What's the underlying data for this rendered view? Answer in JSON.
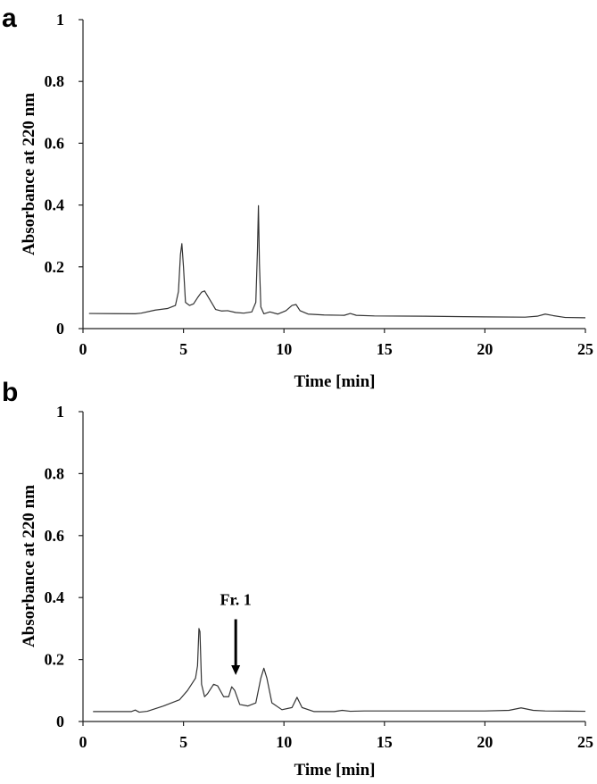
{
  "chart_data": [
    {
      "type": "line",
      "panel_label": "a",
      "title": "",
      "xlabel": "Time [min]",
      "ylabel": "Absorbance at 220 nm",
      "xlim": [
        0,
        25
      ],
      "ylim": [
        0,
        1
      ],
      "xticks": [
        0,
        5,
        10,
        15,
        20,
        25
      ],
      "yticks": [
        0,
        0.2,
        0.4,
        0.6,
        0.8,
        1
      ],
      "ytick_labels": [
        "0",
        "0.2",
        "0.4",
        "0.6",
        "0.8",
        "1"
      ],
      "grid": false,
      "line_color": "#333333",
      "series": [
        {
          "x": [
            0.3,
            2.6,
            2.9,
            3.6,
            4.2,
            4.6,
            4.75,
            4.85,
            4.92,
            5.0,
            5.1,
            5.3,
            5.5,
            5.7,
            5.9,
            6.05,
            6.3,
            6.6,
            6.9,
            7.2,
            7.6,
            8.0,
            8.4,
            8.6,
            8.68,
            8.73,
            8.78,
            8.85,
            9.0,
            9.3,
            9.7,
            10.1,
            10.4,
            10.6,
            10.8,
            11.2,
            12.0,
            13.0,
            13.3,
            13.6,
            14.5,
            17,
            20,
            22.0,
            22.6,
            23.0,
            23.4,
            24.0,
            25.0
          ],
          "y": [
            0.049,
            0.048,
            0.05,
            0.06,
            0.065,
            0.075,
            0.12,
            0.24,
            0.275,
            0.2,
            0.085,
            0.075,
            0.08,
            0.1,
            0.118,
            0.122,
            0.095,
            0.062,
            0.057,
            0.058,
            0.052,
            0.05,
            0.054,
            0.085,
            0.25,
            0.398,
            0.21,
            0.07,
            0.048,
            0.054,
            0.047,
            0.058,
            0.075,
            0.078,
            0.058,
            0.047,
            0.044,
            0.043,
            0.049,
            0.043,
            0.041,
            0.04,
            0.038,
            0.037,
            0.04,
            0.047,
            0.042,
            0.036,
            0.035
          ]
        }
      ]
    },
    {
      "type": "line",
      "panel_label": "b",
      "title": "",
      "xlabel": "Time [min]",
      "ylabel": "Absorbance at 220 nm",
      "xlim": [
        0,
        25
      ],
      "ylim": [
        0,
        1
      ],
      "xticks": [
        0,
        5,
        10,
        15,
        20,
        25
      ],
      "yticks": [
        0,
        0.2,
        0.4,
        0.6,
        0.8,
        1
      ],
      "ytick_labels": [
        "0",
        "0.2",
        "0.4",
        "0.6",
        "0.8",
        "1"
      ],
      "grid": false,
      "line_color": "#333333",
      "series": [
        {
          "x": [
            0.5,
            2.4,
            2.6,
            2.8,
            3.2,
            4.0,
            4.8,
            5.2,
            5.5,
            5.6,
            5.7,
            5.77,
            5.82,
            5.9,
            6.05,
            6.2,
            6.5,
            6.7,
            7.0,
            7.25,
            7.4,
            7.55,
            7.8,
            8.2,
            8.6,
            8.85,
            9.0,
            9.15,
            9.4,
            9.9,
            10.4,
            10.65,
            10.9,
            11.5,
            12.5,
            12.9,
            13.3,
            14,
            16,
            18,
            20,
            21.2,
            21.8,
            22.4,
            23.0,
            25.0
          ],
          "y": [
            0.032,
            0.032,
            0.037,
            0.03,
            0.033,
            0.05,
            0.07,
            0.1,
            0.13,
            0.14,
            0.18,
            0.3,
            0.29,
            0.12,
            0.08,
            0.09,
            0.12,
            0.115,
            0.08,
            0.08,
            0.112,
            0.1,
            0.055,
            0.05,
            0.06,
            0.14,
            0.172,
            0.14,
            0.06,
            0.038,
            0.045,
            0.078,
            0.045,
            0.032,
            0.032,
            0.036,
            0.033,
            0.034,
            0.034,
            0.034,
            0.034,
            0.036,
            0.044,
            0.036,
            0.034,
            0.033
          ]
        }
      ],
      "annotations": [
        {
          "text": "Fr. 1",
          "arrow_x": 7.6,
          "arrow_tip_y": 0.15,
          "arrow_tail_y": 0.33
        }
      ]
    }
  ]
}
